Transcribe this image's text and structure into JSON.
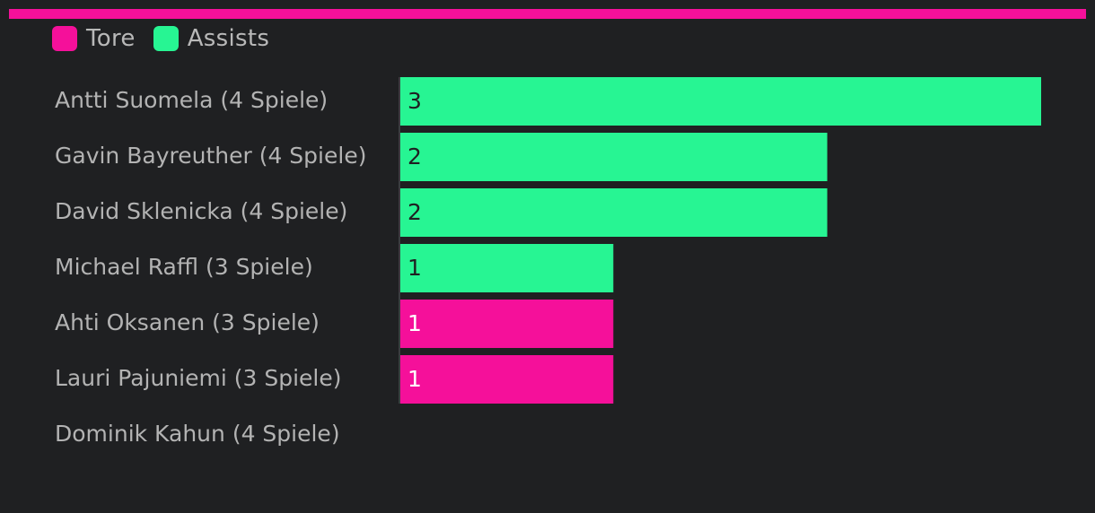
{
  "colors": {
    "tore": "#f5109a",
    "assists": "#27f593",
    "background": "#1f2022",
    "axis": "#3b3d40"
  },
  "legend": {
    "items": [
      {
        "label": "Tore",
        "color": "#f5109a"
      },
      {
        "label": "Assists",
        "color": "#27f593"
      }
    ]
  },
  "chart_data": {
    "type": "bar",
    "orientation": "horizontal",
    "stacked": true,
    "categories": [
      "Antti Suomela (4 Spiele)",
      "Gavin Bayreuther (4 Spiele)",
      "David Sklenicka (4 Spiele)",
      "Michael Raffl (3 Spiele)",
      "Ahti Oksanen (3 Spiele)",
      "Lauri Pajuniemi (3 Spiele)",
      "Dominik Kahun (4 Spiele)"
    ],
    "series": [
      {
        "name": "Tore",
        "color": "#f5109a",
        "values": [
          0,
          0,
          0,
          0,
          1,
          1,
          0
        ]
      },
      {
        "name": "Assists",
        "color": "#27f593",
        "values": [
          3,
          2,
          2,
          1,
          0,
          0,
          0
        ]
      }
    ],
    "xlim": [
      0,
      3
    ],
    "legend_position": "top-left",
    "grid": false,
    "title": "",
    "xlabel": "",
    "ylabel": ""
  }
}
